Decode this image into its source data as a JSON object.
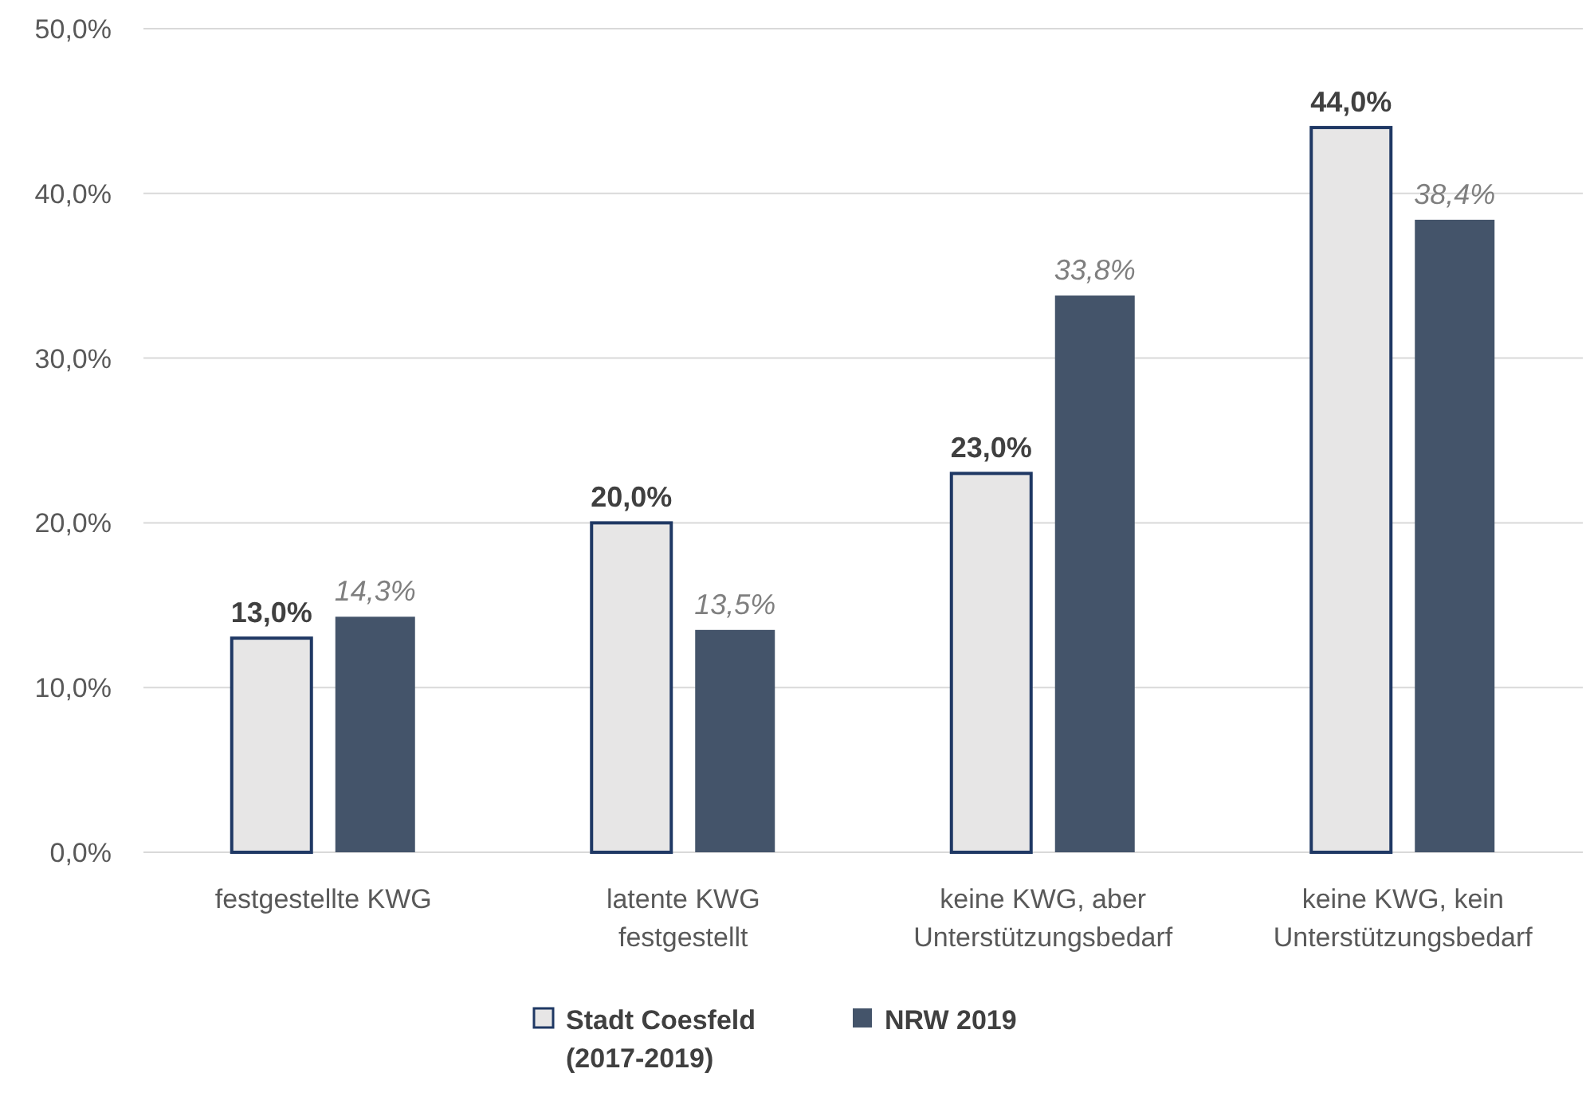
{
  "chart_data": {
    "type": "bar",
    "categories": [
      "festgestellte KWG",
      "latente KWG festgestellt",
      "keine KWG, aber Unterstützungsbedarf",
      "keine KWG, kein Unterstützungsbedarf"
    ],
    "series": [
      {
        "name": "Stadt Coesfeld (2017-2019)",
        "color": "#e7e6e6",
        "values": [
          13.0,
          20.0,
          23.0,
          44.0
        ],
        "value_labels": [
          "13,0%",
          "20,0%",
          "23,0%",
          "44,0%"
        ]
      },
      {
        "name": "NRW 2019",
        "color": "#44546a",
        "values": [
          14.3,
          13.5,
          33.8,
          38.4
        ],
        "value_labels": [
          "14,3%",
          "13,5%",
          "33,8%",
          "38,4%"
        ]
      }
    ],
    "ylim": [
      0,
      50
    ],
    "yticks": [
      {
        "value": 0,
        "label": "0,0%"
      },
      {
        "value": 10,
        "label": "10,0%"
      },
      {
        "value": 20,
        "label": "20,0%"
      },
      {
        "value": 30,
        "label": "30,0%"
      },
      {
        "value": 40,
        "label": "40,0%"
      },
      {
        "value": 50,
        "label": "50,0%"
      }
    ],
    "grid": "y",
    "legend": "bottom"
  }
}
